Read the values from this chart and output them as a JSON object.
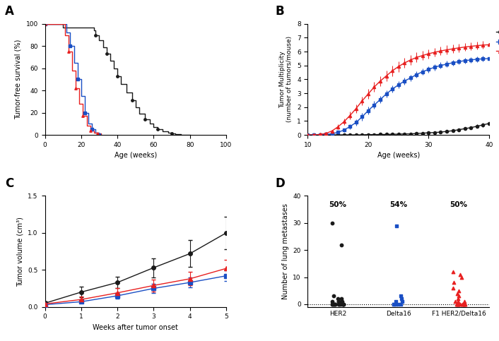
{
  "panel_A": {
    "label": "A",
    "her2_x": [
      0,
      10,
      10,
      27,
      27,
      28,
      28,
      30,
      30,
      32,
      32,
      34,
      34,
      36,
      36,
      38,
      38,
      40,
      40,
      42,
      42,
      45,
      45,
      48,
      48,
      50,
      50,
      52,
      52,
      55,
      55,
      58,
      58,
      60,
      60,
      62,
      62,
      65,
      65,
      68,
      68,
      70,
      70,
      72,
      72,
      75,
      75,
      80
    ],
    "her2_y": [
      100,
      100,
      97,
      97,
      94,
      94,
      90,
      90,
      85,
      85,
      79,
      79,
      73,
      73,
      67,
      67,
      60,
      60,
      53,
      53,
      46,
      46,
      38,
      38,
      31,
      31,
      25,
      25,
      19,
      19,
      14,
      14,
      10,
      10,
      7,
      7,
      5,
      5,
      3,
      3,
      2,
      2,
      1,
      1,
      0.5,
      0.5,
      0,
      0
    ],
    "delta16_x": [
      0,
      12,
      12,
      14,
      14,
      16,
      16,
      18,
      18,
      20,
      20,
      22,
      22,
      24,
      24,
      26,
      26,
      28,
      28,
      30,
      30
    ],
    "delta16_y": [
      100,
      100,
      92,
      92,
      80,
      80,
      65,
      65,
      50,
      50,
      35,
      35,
      20,
      20,
      10,
      10,
      5,
      5,
      2,
      2,
      0
    ],
    "f1_x": [
      0,
      11,
      11,
      13,
      13,
      15,
      15,
      17,
      17,
      19,
      19,
      21,
      21,
      23,
      23,
      25,
      25,
      27,
      27,
      29,
      29,
      31,
      31
    ],
    "f1_y": [
      100,
      100,
      90,
      90,
      75,
      75,
      58,
      58,
      42,
      42,
      28,
      28,
      17,
      17,
      8,
      8,
      4,
      4,
      2,
      2,
      1,
      1,
      0
    ],
    "her2_dot_x": [
      27,
      34,
      40,
      48,
      55,
      62,
      68,
      75
    ],
    "her2_dot_y": [
      97,
      79,
      60,
      38,
      19,
      7,
      2,
      0
    ],
    "xlabel": "Age (weeks)",
    "ylabel": "Tumor-free survival (%)",
    "xlim": [
      0,
      100
    ],
    "ylim": [
      0,
      100
    ],
    "xticks": [
      0,
      20,
      40,
      60,
      80,
      100
    ],
    "yticks": [
      0,
      20,
      40,
      60,
      80,
      100
    ]
  },
  "panel_B": {
    "label": "B",
    "age_weeks": [
      10,
      11,
      12,
      13,
      14,
      15,
      16,
      17,
      18,
      19,
      20,
      21,
      22,
      23,
      24,
      25,
      26,
      27,
      28,
      29,
      30,
      31,
      32,
      33,
      34,
      35,
      36,
      37,
      38,
      39,
      40
    ],
    "her2_mean": [
      0.0,
      0.0,
      0.0,
      0.0,
      0.0,
      0.0,
      0.0,
      0.0,
      0.0,
      0.0,
      0.02,
      0.02,
      0.03,
      0.03,
      0.05,
      0.05,
      0.07,
      0.07,
      0.1,
      0.12,
      0.15,
      0.17,
      0.2,
      0.25,
      0.3,
      0.37,
      0.45,
      0.52,
      0.62,
      0.72,
      0.82
    ],
    "her2_sem": [
      0.0,
      0.0,
      0.0,
      0.0,
      0.0,
      0.0,
      0.0,
      0.0,
      0.0,
      0.0,
      0.01,
      0.01,
      0.01,
      0.01,
      0.02,
      0.02,
      0.02,
      0.02,
      0.03,
      0.03,
      0.04,
      0.04,
      0.05,
      0.06,
      0.07,
      0.08,
      0.1,
      0.11,
      0.13,
      0.15,
      0.18
    ],
    "delta16_mean": [
      0.0,
      0.0,
      0.0,
      0.03,
      0.08,
      0.18,
      0.35,
      0.6,
      0.9,
      1.3,
      1.75,
      2.15,
      2.55,
      2.95,
      3.3,
      3.6,
      3.88,
      4.1,
      4.35,
      4.55,
      4.72,
      4.88,
      5.0,
      5.1,
      5.2,
      5.28,
      5.35,
      5.4,
      5.45,
      5.48,
      5.5
    ],
    "delta16_sem": [
      0.0,
      0.0,
      0.0,
      0.02,
      0.04,
      0.08,
      0.12,
      0.17,
      0.22,
      0.27,
      0.28,
      0.28,
      0.27,
      0.27,
      0.27,
      0.26,
      0.26,
      0.25,
      0.25,
      0.24,
      0.24,
      0.23,
      0.23,
      0.22,
      0.22,
      0.21,
      0.21,
      0.21,
      0.21,
      0.21,
      0.21
    ],
    "f1_mean": [
      0.0,
      0.0,
      0.03,
      0.1,
      0.28,
      0.58,
      0.95,
      1.4,
      1.9,
      2.45,
      2.95,
      3.45,
      3.88,
      4.25,
      4.62,
      4.92,
      5.18,
      5.4,
      5.58,
      5.72,
      5.85,
      5.95,
      6.05,
      6.13,
      6.2,
      6.27,
      6.33,
      6.38,
      6.43,
      6.47,
      6.5
    ],
    "f1_sem": [
      0.0,
      0.0,
      0.02,
      0.05,
      0.1,
      0.17,
      0.22,
      0.27,
      0.3,
      0.32,
      0.35,
      0.36,
      0.37,
      0.37,
      0.37,
      0.37,
      0.37,
      0.36,
      0.35,
      0.34,
      0.33,
      0.32,
      0.32,
      0.31,
      0.3,
      0.3,
      0.29,
      0.29,
      0.28,
      0.28,
      0.28
    ],
    "xlabel": "Age (weeks)",
    "ylabel": "Tumor Multiplicity\n(number of tumors/mouse)",
    "xlim": [
      10,
      40
    ],
    "ylim": [
      0,
      8
    ],
    "xticks": [
      10,
      20,
      30,
      40
    ],
    "yticks": [
      0,
      1,
      2,
      3,
      4,
      5,
      6,
      7,
      8
    ]
  },
  "panel_C": {
    "label": "C",
    "weeks": [
      0,
      1,
      2,
      3,
      4,
      5
    ],
    "her2_mean": [
      0.05,
      0.2,
      0.33,
      0.53,
      0.72,
      1.0
    ],
    "her2_sem": [
      0.02,
      0.07,
      0.08,
      0.13,
      0.18,
      0.22
    ],
    "delta16_mean": [
      0.03,
      0.07,
      0.15,
      0.25,
      0.33,
      0.42
    ],
    "delta16_sem": [
      0.01,
      0.02,
      0.04,
      0.06,
      0.07,
      0.07
    ],
    "f1_mean": [
      0.04,
      0.1,
      0.19,
      0.29,
      0.38,
      0.52
    ],
    "f1_sem": [
      0.01,
      0.04,
      0.06,
      0.08,
      0.09,
      0.12
    ],
    "xlabel": "Weeks after tumor onset",
    "ylabel": "Tumor volume (cm³)",
    "xlim": [
      0,
      5
    ],
    "ylim": [
      0,
      1.5
    ],
    "xticks": [
      0,
      1,
      2,
      3,
      4,
      5
    ],
    "yticks": [
      0.0,
      0.5,
      1.0,
      1.5
    ]
  },
  "panel_D": {
    "label": "D",
    "her2_values": [
      0,
      0,
      0,
      0,
      0,
      0,
      0,
      0,
      0,
      0,
      0,
      0,
      0,
      1,
      1,
      1,
      1,
      2,
      2,
      3,
      22,
      30
    ],
    "delta16_values": [
      0,
      0,
      0,
      0,
      0,
      1,
      1,
      2,
      3,
      29
    ],
    "f1_values": [
      0,
      0,
      0,
      0,
      0,
      0,
      0,
      0,
      0,
      0,
      1,
      1,
      1,
      2,
      3,
      4,
      5,
      6,
      8,
      10,
      11,
      12
    ],
    "her2_pct": "50%",
    "delta16_pct": "54%",
    "f1_pct": "50%",
    "ylabel": "Number of lung metastases",
    "ylim": [
      -1,
      40
    ],
    "yticks": [
      0,
      10,
      20,
      30,
      40
    ]
  },
  "colors": {
    "her2": "#1a1a1a",
    "delta16": "#1a4fc4",
    "f1": "#e82020"
  }
}
